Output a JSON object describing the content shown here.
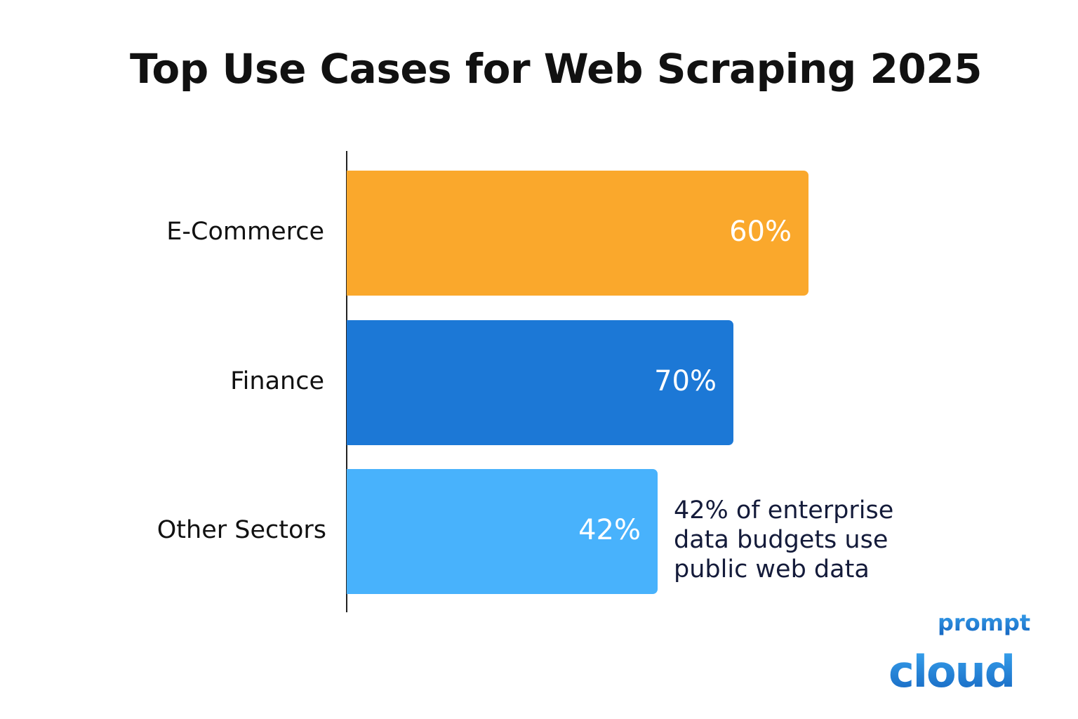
{
  "chart_data": {
    "type": "bar",
    "orientation": "horizontal",
    "title": "Top Use Cases for Web Scraping 2025",
    "categories": [
      "E-Commerce",
      "Finance",
      "Other Sectors"
    ],
    "values": [
      60,
      70,
      42
    ],
    "value_labels": [
      "60%",
      "70%",
      "42%"
    ],
    "unit": "%",
    "colors": [
      "#FAA82C",
      "#1C78D6",
      "#48B2FC"
    ],
    "grid": false,
    "annotation": [
      "42% of enterprise",
      "data budgets use",
      "public web data"
    ]
  },
  "logo": {
    "text": "prompt cloud",
    "color": "#1E88E5"
  }
}
